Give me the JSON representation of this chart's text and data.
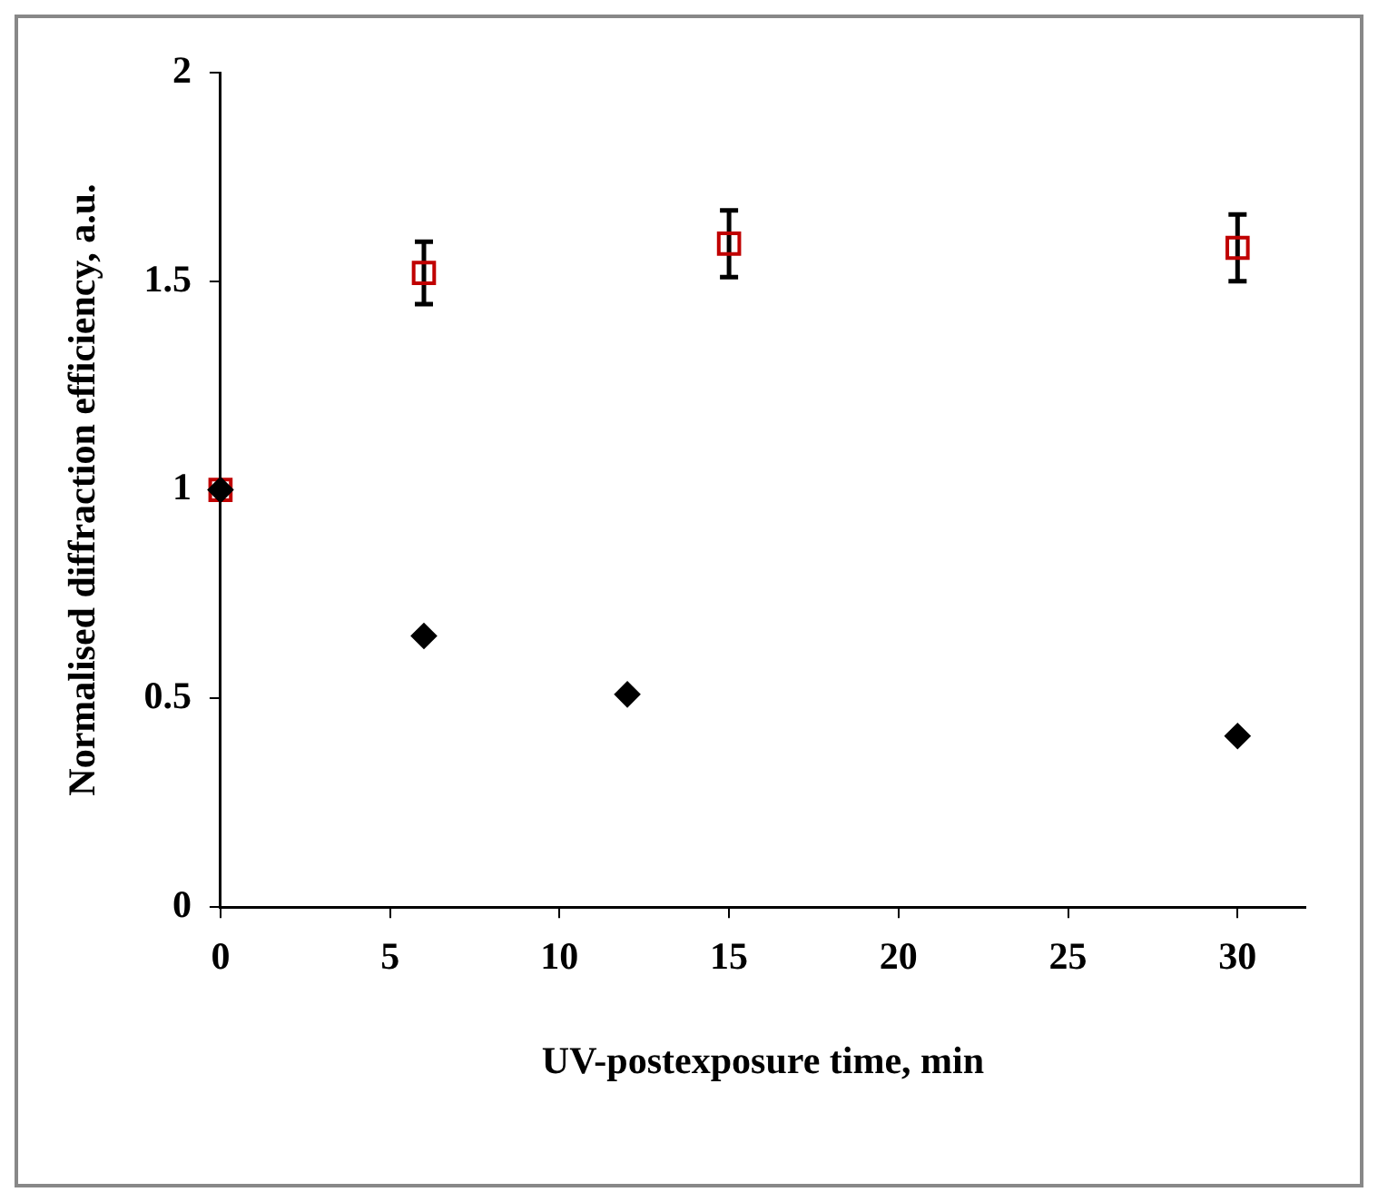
{
  "chart_data": {
    "type": "scatter",
    "xlabel": "UV-postexposure time, min",
    "ylabel": "Normalised diffraction efficiency, a.u.",
    "series": [
      {
        "x": [
          0,
          6,
          15,
          30
        ],
        "values": [
          1,
          1.52,
          1.59,
          1.58
        ],
        "errors": [
          null,
          0.075,
          0.08,
          0.08
        ],
        "color": "#c00000",
        "marker": "square"
      },
      {
        "x": [
          0,
          6,
          12,
          30
        ],
        "values": [
          1,
          0.65,
          0.51,
          0.41
        ],
        "color": "#000000",
        "marker": "diamond"
      }
    ],
    "xlim": [
      0,
      32
    ],
    "xticks": [
      0,
      5,
      10,
      15,
      20,
      25,
      30
    ],
    "ylim": [
      0,
      2
    ],
    "yticks": [
      0,
      0.5,
      1,
      1.5,
      2
    ],
    "grid": false,
    "legend": false
  }
}
